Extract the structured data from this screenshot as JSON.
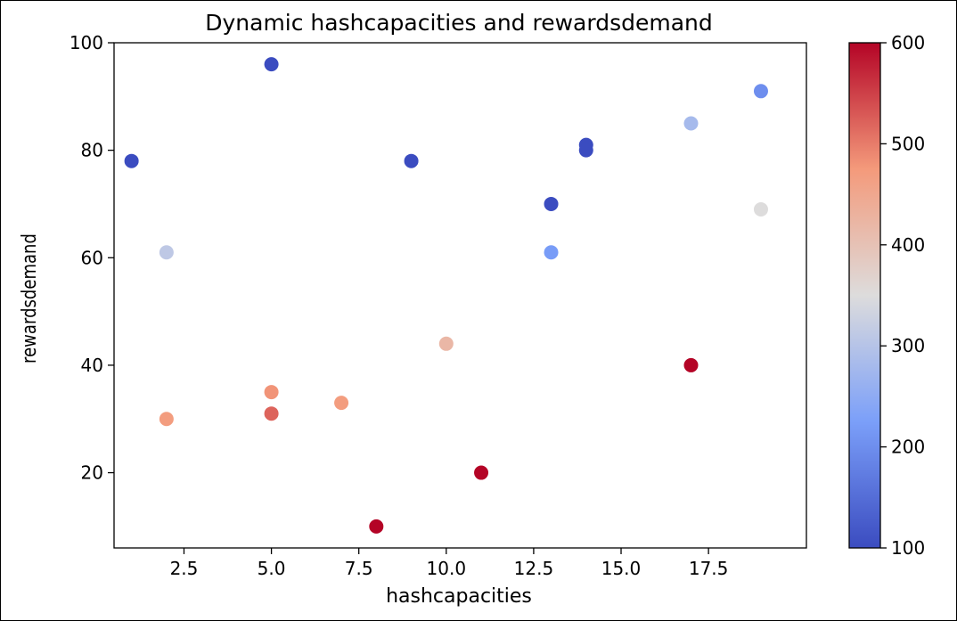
{
  "chart_data": {
    "type": "scatter",
    "title": "Dynamic hashcapacities and rewardsdemand",
    "xlabel": "hashcapacities",
    "ylabel": "rewardsdemand",
    "xlim": [
      0.5,
      20.3
    ],
    "ylim": [
      6,
      100
    ],
    "x_ticks": [
      "2.5",
      "5.0",
      "7.5",
      "10.0",
      "12.5",
      "15.0",
      "17.5"
    ],
    "x_tick_values": [
      2.5,
      5.0,
      7.5,
      10.0,
      12.5,
      15.0,
      17.5
    ],
    "y_ticks": [
      "20",
      "40",
      "60",
      "80",
      "100"
    ],
    "y_tick_values": [
      20,
      40,
      60,
      80,
      100
    ],
    "colorbar": {
      "range": [
        100,
        600
      ],
      "ticks": [
        "100",
        "200",
        "300",
        "400",
        "500",
        "600"
      ],
      "tick_values": [
        100,
        200,
        300,
        400,
        500,
        600
      ],
      "colormap": "coolwarm"
    },
    "points": [
      {
        "x": 1,
        "y": 78,
        "c": 100
      },
      {
        "x": 2,
        "y": 61,
        "c": 310
      },
      {
        "x": 2,
        "y": 30,
        "c": 470
      },
      {
        "x": 5,
        "y": 96,
        "c": 100
      },
      {
        "x": 5,
        "y": 35,
        "c": 480
      },
      {
        "x": 5,
        "y": 31,
        "c": 520
      },
      {
        "x": 7,
        "y": 33,
        "c": 470
      },
      {
        "x": 8,
        "y": 10,
        "c": 600
      },
      {
        "x": 9,
        "y": 78,
        "c": 100
      },
      {
        "x": 10,
        "y": 44,
        "c": 420
      },
      {
        "x": 11,
        "y": 20,
        "c": 600
      },
      {
        "x": 13,
        "y": 70,
        "c": 100
      },
      {
        "x": 13,
        "y": 61,
        "c": 220
      },
      {
        "x": 14,
        "y": 81,
        "c": 100
      },
      {
        "x": 14,
        "y": 80,
        "c": 100
      },
      {
        "x": 17,
        "y": 85,
        "c": 280
      },
      {
        "x": 17,
        "y": 40,
        "c": 600
      },
      {
        "x": 19,
        "y": 91,
        "c": 200
      },
      {
        "x": 19,
        "y": 69,
        "c": 350
      }
    ]
  }
}
